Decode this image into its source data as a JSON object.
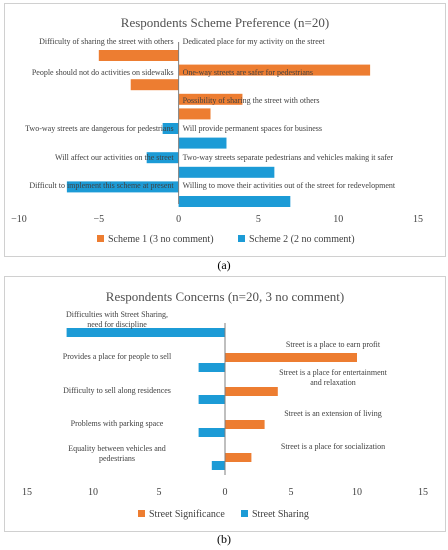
{
  "chart_data": [
    {
      "type": "bar",
      "orientation": "horizontal",
      "title": "Respondents Scheme Preference (n=20)",
      "xlim": [
        -10,
        15
      ],
      "xticks": [
        "−10",
        "−5",
        "0",
        "5",
        "10",
        "15"
      ],
      "grid": false,
      "legend": "bottom",
      "series": [
        {
          "name": "Scheme 1 (3 no comment)",
          "color": "#ED7D31",
          "bars": [
            {
              "value": -5,
              "neg_label": "Difficulty of sharing the street with others"
            },
            {
              "value": 12,
              "pos_label": "Dedicated place for my activity on the street"
            },
            {
              "value": -3,
              "neg_label": "People should not do activities on sidewalks"
            },
            {
              "value": 4,
              "pos_label": "One-way streets are safer for pedestrians"
            },
            {
              "value": 2,
              "pos_label": "Possibility of sharing the street with others"
            }
          ]
        },
        {
          "name": "Scheme 2 (2 no comment)",
          "color": "#1C9BD6",
          "bars": [
            {
              "value": -1,
              "neg_label": "Two-way streets are dangerous for pedestrians"
            },
            {
              "value": 3,
              "pos_label": "Will provide permanent spaces for business"
            },
            {
              "value": -2,
              "neg_label": "Will affect our activities on the street"
            },
            {
              "value": 6,
              "pos_label": "Two-way streets separate pedestrians and vehicles making it safer"
            },
            {
              "value": -7,
              "neg_label": "Difficult to implement this scheme at present"
            },
            {
              "value": 7,
              "pos_label": "Willing to move their activities out of the street for redevelopment"
            }
          ]
        }
      ]
    },
    {
      "type": "bar",
      "orientation": "horizontal",
      "title": "Respondents Concerns (n=20, 3 no comment)",
      "xlim": [
        15,
        -15
      ],
      "xticks": [
        "15",
        "10",
        "5",
        "0",
        "5",
        "10",
        "15"
      ],
      "grid": false,
      "legend": "bottom",
      "series": [
        {
          "name": "Street Significance",
          "color": "#ED7D31",
          "bars": [
            {
              "value": 10,
              "label": "Street is a place to earn profit"
            },
            {
              "value": 4,
              "label": "Street is a place for entertainment and relaxation"
            },
            {
              "value": 3,
              "label": "Street is an extension of living"
            },
            {
              "value": 2,
              "label": "Street is a place for socialization"
            }
          ]
        },
        {
          "name": "Street Sharing",
          "color": "#1C9BD6",
          "bars": [
            {
              "value": 12,
              "label": "Difficulties with Street Sharing, need for discipline"
            },
            {
              "value": 2,
              "label": "Provides a place for people to sell"
            },
            {
              "value": 2,
              "label": "Difficulty to sell along residences"
            },
            {
              "value": 2,
              "label": "Problems with parking space"
            },
            {
              "value": 1,
              "label": "Equality between vehicles and pedestrians"
            }
          ]
        }
      ]
    }
  ],
  "captions": {
    "a": "(a)",
    "b": "(b)"
  }
}
